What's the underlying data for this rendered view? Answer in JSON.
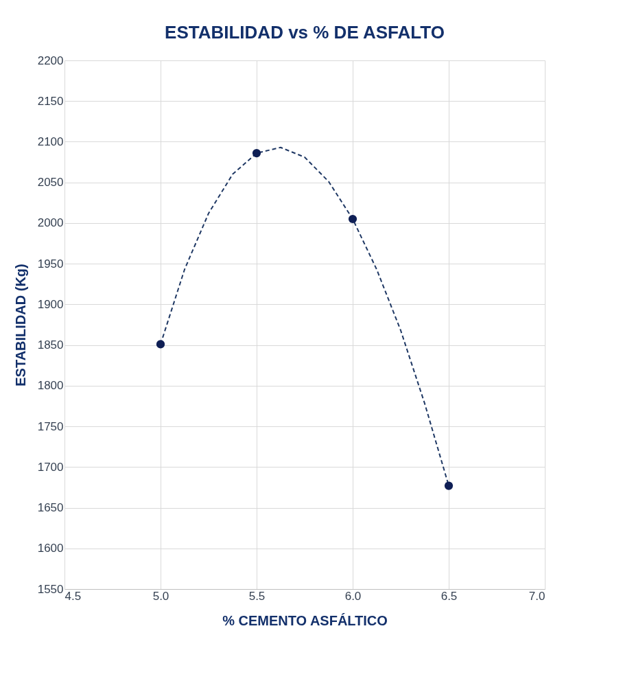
{
  "chart_data": {
    "type": "scatter",
    "title": "ESTABILIDAD vs % DE ASFALTO",
    "xlabel": "% CEMENTO ASFÁLTICO",
    "ylabel": "ESTABILIDAD (Kg)",
    "xlim": [
      4.5,
      7.0
    ],
    "xticks": [
      {
        "value": 4.5,
        "label": "4.5"
      },
      {
        "value": 5.0,
        "label": "5.0"
      },
      {
        "value": 5.5,
        "label": "5.5"
      },
      {
        "value": 6.0,
        "label": "6.0"
      },
      {
        "value": 6.5,
        "label": "6.5"
      },
      {
        "value": 7.0,
        "label": "7.0"
      }
    ],
    "ylim": [
      1550,
      2200
    ],
    "yticks": [
      1550,
      1600,
      1650,
      1700,
      1750,
      1800,
      1850,
      1900,
      1950,
      2000,
      2050,
      2100,
      2150,
      2200
    ],
    "grid": true,
    "marker": "circle",
    "series": [
      {
        "color": "#0f1f55",
        "x": [
          5.0,
          5.5,
          6.0,
          6.5
        ],
        "values": [
          1851,
          2086,
          2005,
          1677
        ]
      },
      {
        "type": "line",
        "color": "#1f3864",
        "line_style": "dashed",
        "marker": "none",
        "x": [
          5.0,
          5.125,
          5.25,
          5.375,
          5.5,
          5.625,
          5.75,
          5.875,
          6.0,
          6.125,
          6.25,
          6.375,
          6.5
        ],
        "values": [
          1851,
          1943,
          2012,
          2060,
          2086,
          2093,
          2081,
          2051,
          2005,
          1943,
          1868,
          1778,
          1677
        ]
      }
    ]
  }
}
